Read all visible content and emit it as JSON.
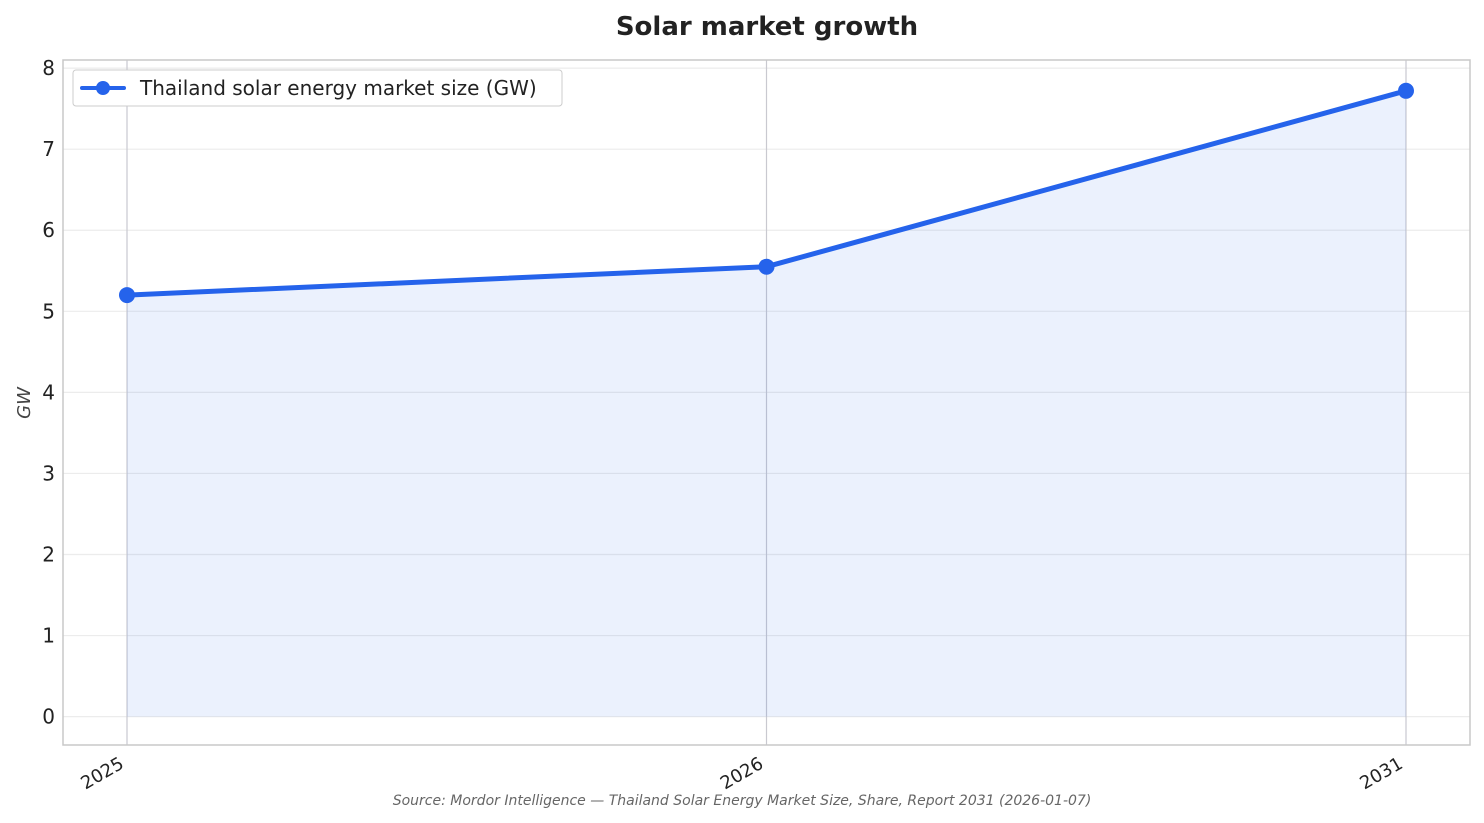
{
  "chart_data": {
    "type": "line",
    "title": "Solar market growth",
    "xlabel": "",
    "ylabel": "GW",
    "categories": [
      "2025",
      "2026",
      "2031"
    ],
    "series": [
      {
        "name": "Thailand solar energy market size (GW)",
        "values": [
          5.2,
          5.55,
          7.72
        ],
        "color": "#2563eb",
        "fill_color": "#2563eb"
      }
    ],
    "ylim": [
      -0.35,
      8.1
    ],
    "yticks": [
      "0",
      "1",
      "2",
      "3",
      "4",
      "5",
      "6",
      "7",
      "8"
    ],
    "grid": true,
    "legend": "top-left",
    "source": "Source: Mordor Intelligence — Thailand Solar Energy Market Size, Share, Report 2031 (2026-01-07)"
  }
}
